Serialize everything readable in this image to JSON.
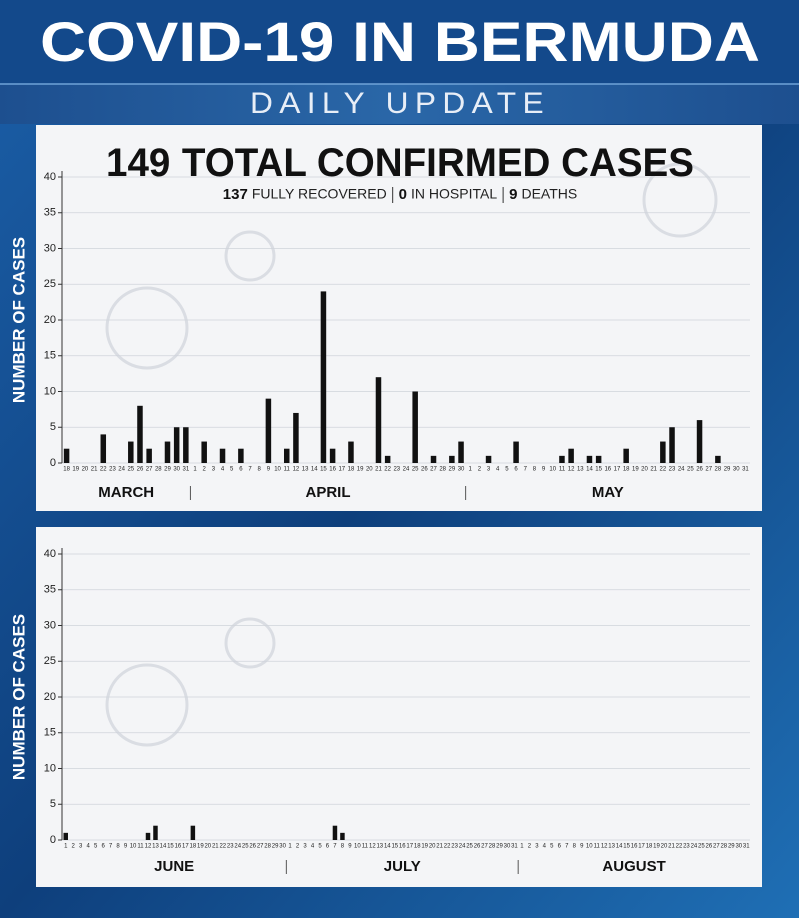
{
  "header": {
    "title": "COVID-19 IN BERMUDA",
    "subtitle": "DAILY UPDATE"
  },
  "summary": {
    "total": 149,
    "title": "TOTAL CONFIRMED CASES",
    "stats": [
      {
        "value": 137,
        "label": "FULLY RECOVERED"
      },
      {
        "value": 0,
        "label": "IN HOSPITAL"
      },
      {
        "value": 9,
        "label": "DEATHS"
      }
    ]
  },
  "chart_data": [
    {
      "type": "bar",
      "ylabel": "NUMBER OF CASES",
      "color": "#111111",
      "ylim": [
        0,
        40
      ],
      "yticks": [
        0,
        5,
        10,
        15,
        20,
        25,
        30,
        35,
        40
      ],
      "grid": true,
      "groups": [
        {
          "label": "MARCH",
          "categories": [
            "18",
            "19",
            "20",
            "21",
            "22",
            "23",
            "24",
            "25",
            "26",
            "27",
            "28",
            "29",
            "30",
            "31"
          ],
          "values": [
            2,
            0,
            0,
            0,
            4,
            0,
            0,
            3,
            8,
            2,
            0,
            3,
            5,
            5
          ]
        },
        {
          "label": "APRIL",
          "categories": [
            "1",
            "2",
            "3",
            "4",
            "5",
            "6",
            "7",
            "8",
            "9",
            "10",
            "11",
            "12",
            "13",
            "14",
            "15",
            "16",
            "17",
            "18",
            "19",
            "20",
            "21",
            "22",
            "23",
            "24",
            "25",
            "26",
            "27",
            "28",
            "29",
            "30"
          ],
          "values": [
            0,
            3,
            0,
            2,
            0,
            2,
            0,
            0,
            9,
            0,
            2,
            7,
            0,
            0,
            24,
            2,
            0,
            3,
            0,
            0,
            12,
            1,
            0,
            0,
            10,
            0,
            1,
            0,
            1,
            3
          ]
        },
        {
          "label": "MAY",
          "categories": [
            "1",
            "2",
            "3",
            "4",
            "5",
            "6",
            "7",
            "8",
            "9",
            "10",
            "11",
            "12",
            "13",
            "14",
            "15",
            "16",
            "17",
            "18",
            "19",
            "20",
            "21",
            "22",
            "23",
            "24",
            "25",
            "26",
            "27",
            "28",
            "29",
            "30",
            "31"
          ],
          "values": [
            0,
            0,
            1,
            0,
            0,
            3,
            0,
            0,
            0,
            0,
            1,
            2,
            0,
            1,
            1,
            0,
            0,
            2,
            0,
            0,
            0,
            3,
            5,
            0,
            0,
            6,
            0,
            1,
            0,
            0,
            0
          ]
        }
      ]
    },
    {
      "type": "bar",
      "ylabel": "NUMBER OF CASES",
      "color": "#111111",
      "ylim": [
        0,
        40
      ],
      "yticks": [
        0,
        5,
        10,
        15,
        20,
        25,
        30,
        35,
        40
      ],
      "grid": true,
      "groups": [
        {
          "label": "JUNE",
          "categories": [
            "1",
            "2",
            "3",
            "4",
            "5",
            "6",
            "7",
            "8",
            "9",
            "10",
            "11",
            "12",
            "13",
            "14",
            "15",
            "16",
            "17",
            "18",
            "19",
            "20",
            "21",
            "22",
            "23",
            "24",
            "25",
            "26",
            "27",
            "28",
            "29",
            "30"
          ],
          "values": [
            1,
            0,
            0,
            0,
            0,
            0,
            0,
            0,
            0,
            0,
            0,
            1,
            2,
            0,
            0,
            0,
            0,
            2,
            0,
            0,
            0,
            0,
            0,
            0,
            0,
            0,
            0,
            0,
            0,
            0
          ]
        },
        {
          "label": "JULY",
          "categories": [
            "1",
            "2",
            "3",
            "4",
            "5",
            "6",
            "7",
            "8",
            "9",
            "10",
            "11",
            "12",
            "13",
            "14",
            "15",
            "16",
            "17",
            "18",
            "19",
            "20",
            "21",
            "22",
            "23",
            "24",
            "25",
            "26",
            "27",
            "28",
            "29",
            "30",
            "31"
          ],
          "values": [
            0,
            0,
            0,
            0,
            0,
            0,
            2,
            1,
            0,
            0,
            0,
            0,
            0,
            0,
            0,
            0,
            0,
            0,
            0,
            0,
            0,
            0,
            0,
            0,
            0,
            0,
            0,
            0,
            0,
            0,
            0
          ]
        },
        {
          "label": "AUGUST",
          "categories": [
            "1",
            "2",
            "3",
            "4",
            "5",
            "6",
            "7",
            "8",
            "9",
            "10",
            "11",
            "12",
            "13",
            "14",
            "15",
            "16",
            "17",
            "18",
            "19",
            "20",
            "21",
            "22",
            "23",
            "24",
            "25",
            "26",
            "27",
            "28",
            "29",
            "30",
            "31"
          ],
          "values": [
            0,
            0,
            0,
            0,
            0,
            0,
            0,
            0,
            0,
            0,
            0,
            0,
            0,
            0,
            0,
            0,
            0,
            0,
            0,
            0,
            0,
            0,
            0,
            0,
            0,
            0,
            0,
            0,
            0,
            0,
            0
          ]
        }
      ]
    }
  ]
}
